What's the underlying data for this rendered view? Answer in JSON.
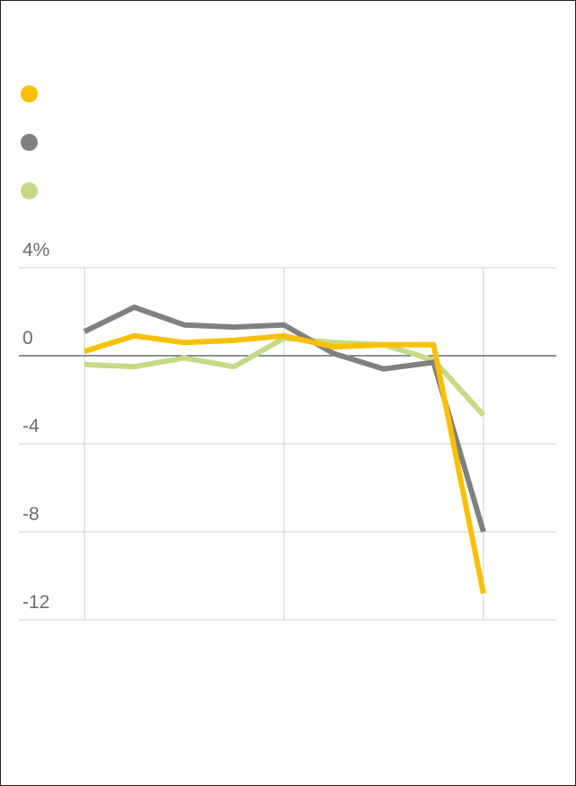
{
  "chart_data": {
    "type": "line",
    "title": "",
    "xlabel": "",
    "ylabel": "",
    "y_ticks": [
      {
        "value": 4,
        "label": "4%"
      },
      {
        "value": 0,
        "label": "0"
      },
      {
        "value": -4,
        "label": "-4"
      },
      {
        "value": -8,
        "label": "-8"
      },
      {
        "value": -12,
        "label": "-12"
      }
    ],
    "ylim": [
      -12,
      4
    ],
    "x": [
      0,
      1,
      2,
      3,
      4,
      5,
      6,
      7,
      8
    ],
    "x_gridlines_at": [
      0,
      4,
      8
    ],
    "grid": true,
    "legend": "top-left",
    "series": [
      {
        "name": "",
        "color": "#F8C000",
        "values": [
          0.2,
          0.9,
          0.6,
          0.7,
          0.9,
          0.4,
          0.5,
          0.5,
          -10.8
        ]
      },
      {
        "name": "",
        "color": "#808080",
        "values": [
          1.1,
          2.2,
          1.4,
          1.3,
          1.4,
          0.1,
          -0.6,
          -0.3,
          -8.0
        ]
      },
      {
        "name": "",
        "color": "#C5DA87",
        "values": [
          -0.4,
          -0.5,
          -0.1,
          -0.5,
          0.8,
          0.6,
          0.5,
          -0.2,
          -2.7
        ]
      }
    ]
  }
}
